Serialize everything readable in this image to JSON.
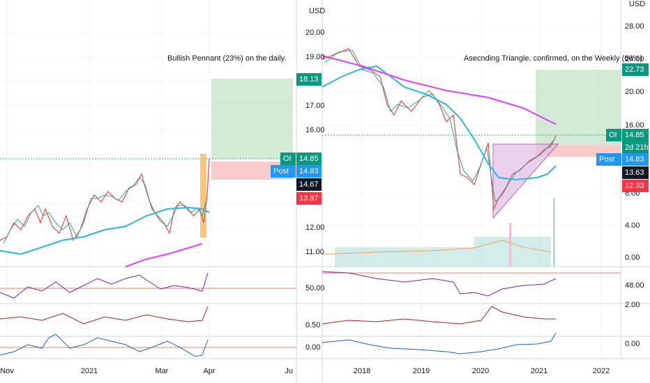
{
  "left_chart": {
    "currency": "USD",
    "annotation": "Bullish Pennant (23%) on the daily.",
    "price_axis": [
      "20.00",
      "19.00",
      "17.00",
      "16.00",
      "12.00",
      "11.00"
    ],
    "price_tags": [
      {
        "label": "18.13"
      },
      {
        "prefix": "OI",
        "label": "14.85"
      },
      {
        "prefix": "Post",
        "label": "14.83"
      },
      {
        "label": "14.67"
      },
      {
        "label": "13.97"
      }
    ],
    "indicator_axis": [
      "50.00",
      "0.50",
      "0.00"
    ],
    "time_axis": [
      "Nov",
      "2021",
      "Mar",
      "Apr",
      "Ju"
    ]
  },
  "right_chart": {
    "currency": "USD",
    "annotation": "Asecnding Triangle, confirmed, on the Weekly (66%)",
    "price_axis": [
      "28.00",
      "24.00",
      "20.00",
      "16.00",
      "8.00",
      "4.00",
      "0.00"
    ],
    "price_tags": [
      {
        "label": "22.73"
      },
      {
        "prefix": "OI",
        "label": "14.85"
      },
      {
        "label": "2d 21h"
      },
      {
        "prefix": "Post",
        "label": "14.83"
      },
      {
        "label": "13.63"
      },
      {
        "label": "12.33"
      }
    ],
    "indicator_axis": [
      "48.00",
      "2.00",
      "0.00"
    ],
    "time_axis": [
      "2018",
      "2019",
      "2020",
      "2021",
      "2022"
    ]
  }
}
